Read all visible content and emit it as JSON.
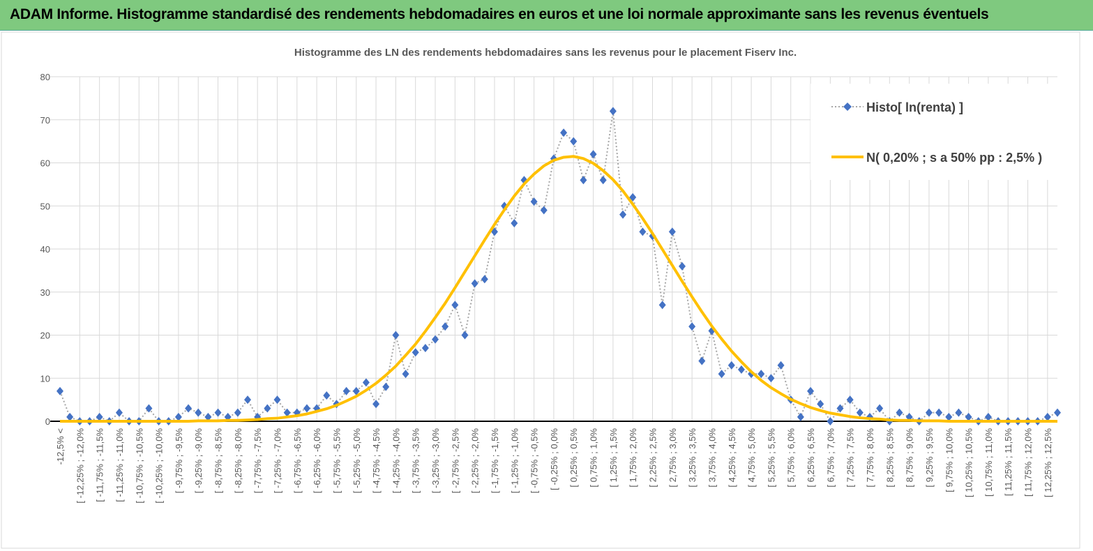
{
  "header": {
    "title": "ADAM Informe. Histogramme standardisé des rendements hebdomadaires en euros et une loi normale approximante sans les revenus éventuels"
  },
  "chart_data": {
    "type": "line",
    "title": "Histogramme des LN des rendements hebdomadaires sans les revenus pour le placement Fiserv Inc.",
    "categories": [
      "-12,5% <",
      null,
      "[ -12,25% ; -12,0%",
      null,
      "[ -11,75% ; -11,5%",
      null,
      "[ -11,25% ; -11,0%",
      null,
      "[ -10,75% ; -10,5%",
      null,
      "[ -10,25% ; -10,0%",
      null,
      "[ -9,75% ; -9,5%",
      null,
      "[ -9,25% ; -9,0%",
      null,
      "[ -8,75% ; -8,5%",
      null,
      "[ -8,25% ; -8,0%",
      null,
      "[ -7,75% ; -7,5%",
      null,
      "[ -7,25% ; -7,0%",
      null,
      "[ -6,75% ; -6,5%",
      null,
      "[ -6,25% ; -6,0%",
      null,
      "[ -5,75% ; -5,5%",
      null,
      "[ -5,25% ; -5,0%",
      null,
      "[ -4,75% ; -4,5%",
      null,
      "[ -4,25% ; -4,0%",
      null,
      "[ -3,75% ; -3,5%",
      null,
      "[ -3,25% ; -3,0%",
      null,
      "[ -2,75% ; -2,5%",
      null,
      "[ -2,25% ; -2,0%",
      null,
      "[ -1,75% ; -1,5%",
      null,
      "[ -1,25% ; -1,0%",
      null,
      "[ -0,75% ; -0,5%",
      null,
      "[ -0,25% ; 0,0%",
      null,
      "[ 0,25% ; 0,5%",
      null,
      "[ 0,75% ; 1,0%",
      null,
      "[ 1,25% ; 1,5%",
      null,
      "[ 1,75% ; 2,0%",
      null,
      "[ 2,25% ; 2,5%",
      null,
      "[ 2,75% ; 3,0%",
      null,
      "[ 3,25% ; 3,5%",
      null,
      "[ 3,75% ; 4,0%",
      null,
      "[ 4,25% ; 4,5%",
      null,
      "[ 4,75% ; 5,0%",
      null,
      "[ 5,25% ; 5,5%",
      null,
      "[ 5,75% ; 6,0%",
      null,
      "[ 6,25% ; 6,5%",
      null,
      "[ 6,75% ; 7,0%",
      null,
      "[ 7,25% ; 7,5%",
      null,
      "[ 7,75% ; 8,0%",
      null,
      "[ 8,25% ; 8,5%",
      null,
      "[ 8,75% ; 9,0%",
      null,
      "[ 9,25% ; 9,5%",
      null,
      "[ 9,75% ; 10,0%",
      null,
      "[ 10,25% ; 10,5%",
      null,
      "[ 10,75% ; 11,0%",
      null,
      "[ 11,25% ; 11,5%",
      null,
      "[ 11,75% ; 12,0%",
      null,
      "[ 12,25% ; 12,5%",
      null
    ],
    "series": [
      {
        "name": "Histo[ ln(renta) ]",
        "color": "#4472c4",
        "line_color": "#a6a6a6",
        "values": [
          7,
          1,
          0,
          0,
          1,
          0,
          2,
          0,
          0,
          3,
          0,
          0,
          1,
          3,
          2,
          1,
          2,
          1,
          2,
          5,
          1,
          3,
          5,
          2,
          2,
          3,
          3,
          6,
          4,
          7,
          7,
          9,
          4,
          8,
          20,
          11,
          16,
          17,
          19,
          22,
          27,
          20,
          32,
          33,
          44,
          50,
          46,
          56,
          51,
          49,
          61,
          67,
          65,
          56,
          62,
          56,
          72,
          48,
          52,
          44,
          43,
          27,
          44,
          36,
          22,
          14,
          21,
          11,
          13,
          12,
          11,
          11,
          10,
          13,
          5,
          1,
          7,
          4,
          0,
          3,
          5,
          2,
          1,
          3,
          0,
          2,
          1,
          0,
          2,
          2,
          1,
          2,
          1,
          0,
          1,
          0,
          0,
          0,
          0,
          0,
          1,
          2
        ]
      },
      {
        "name": "N( 0,20% ; s a 50% pp : 2,5% )",
        "color": "#ffc000",
        "values": [
          0,
          0,
          0,
          0,
          0,
          0,
          0,
          0,
          0,
          0,
          0,
          0,
          0,
          0,
          0.1,
          0.1,
          0.1,
          0.2,
          0.2,
          0.3,
          0.4,
          0.6,
          0.7,
          1.0,
          1.3,
          1.7,
          2.3,
          2.9,
          3.7,
          4.7,
          5.8,
          7.2,
          8.8,
          10.7,
          12.8,
          15.3,
          17.9,
          20.9,
          24.1,
          27.4,
          31.0,
          34.7,
          38.4,
          42.1,
          45.7,
          49.1,
          52.3,
          55.1,
          57.4,
          59.3,
          60.6,
          61.3,
          61.5,
          61.0,
          59.9,
          58.2,
          56.1,
          53.5,
          50.4,
          47.1,
          43.6,
          39.9,
          36.2,
          32.5,
          28.9,
          25.4,
          22.1,
          19.1,
          16.3,
          13.8,
          11.5,
          9.5,
          7.8,
          6.4,
          5.1,
          4.1,
          3.2,
          2.5,
          1.9,
          1.5,
          1.1,
          0.8,
          0.6,
          0.5,
          0.3,
          0.2,
          0.2,
          0.1,
          0.1,
          0.1,
          0,
          0,
          0,
          0,
          0,
          0,
          0,
          0,
          0,
          0,
          0,
          0
        ]
      }
    ],
    "ylim": [
      0,
      80
    ],
    "yticks": [
      0,
      10,
      20,
      30,
      40,
      50,
      60,
      70,
      80
    ],
    "grid": true,
    "legend": "upper right"
  }
}
